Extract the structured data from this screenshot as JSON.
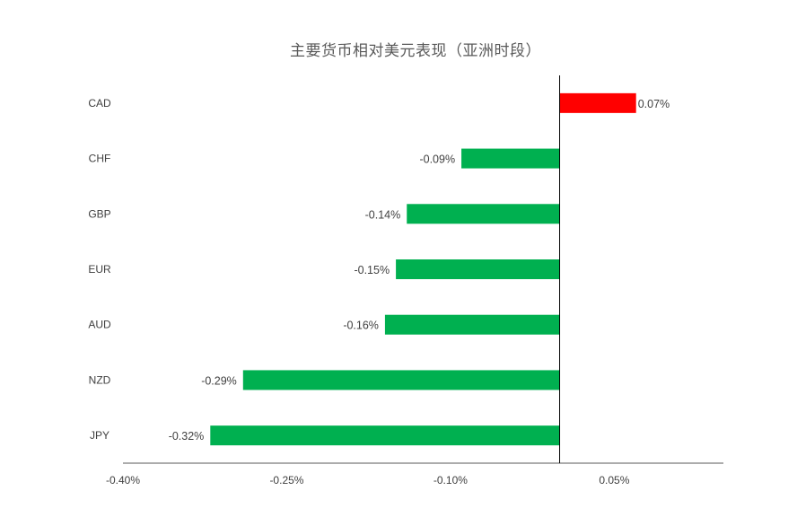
{
  "chart_data": {
    "type": "bar",
    "orientation": "horizontal",
    "title": "主要货币相对美元表现（亚洲时段）",
    "categories": [
      "CAD",
      "CHF",
      "GBP",
      "EUR",
      "AUD",
      "NZD",
      "JPY"
    ],
    "values": [
      0.07,
      -0.09,
      -0.14,
      -0.15,
      -0.16,
      -0.29,
      -0.32
    ],
    "data_labels": [
      "0.07%",
      "-0.09%",
      "-0.14%",
      "-0.15%",
      "-0.16%",
      "-0.29%",
      "-0.32%"
    ],
    "x_ticks": [
      -0.4,
      -0.25,
      -0.1,
      0.05
    ],
    "x_tick_labels": [
      "-0.40%",
      "-0.25%",
      "-0.10%",
      "0.05%"
    ],
    "xlim": [
      -0.4,
      0.15
    ],
    "xlabel": "",
    "ylabel": "",
    "grid": false,
    "legend": false,
    "colors": {
      "positive": "#ff0000",
      "negative": "#00b050",
      "axis": "#000000",
      "text": "#404040",
      "title": "#595959"
    }
  }
}
